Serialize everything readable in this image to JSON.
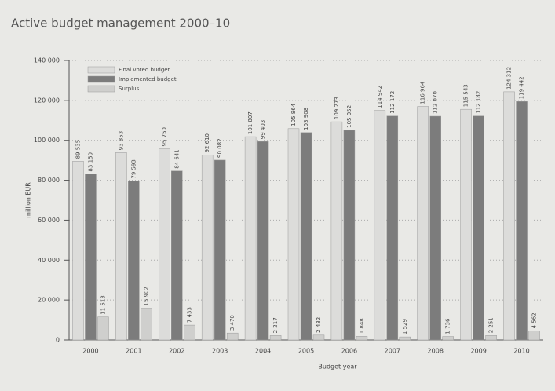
{
  "chart_data": {
    "type": "bar",
    "title": "Active budget management 2000–10",
    "x_label": "Budget year",
    "y_label": "million EUR",
    "categories": [
      "2000",
      "2001",
      "2002",
      "2003",
      "2004",
      "2005",
      "2006",
      "2007",
      "2008",
      "2009",
      "2010"
    ],
    "series": [
      {
        "name": "Final voted budget",
        "color": "#dcdcda",
        "values": [
          89535,
          93853,
          95750,
          92610,
          101807,
          105864,
          109273,
          114942,
          116964,
          115543,
          124312
        ],
        "value_labels": [
          "89 535",
          "93 853",
          "95 750",
          "92 610",
          "101 807",
          "105 864",
          "109 273",
          "114 942",
          "116 964",
          "115 543",
          "124 312"
        ]
      },
      {
        "name": "Implemented budget",
        "color": "#7c7c7c",
        "values": [
          83150,
          79593,
          84641,
          90082,
          99403,
          103908,
          105052,
          112172,
          112070,
          112182,
          119442
        ],
        "value_labels": [
          "83 150",
          "79 593",
          "84 641",
          "90 082",
          "99 403",
          "103 908",
          "105 052",
          "112 172",
          "112 070",
          "112 182",
          "119 442"
        ]
      },
      {
        "name": "Surplus",
        "color": "#cfcfcd",
        "values": [
          11513,
          15902,
          7433,
          3470,
          2217,
          2432,
          1848,
          1529,
          1736,
          2251,
          4562
        ],
        "value_labels": [
          "11 513",
          "15 902",
          "7 433",
          "3 470",
          "2 217",
          "2 432",
          "1 848",
          "1 529",
          "1 736",
          "2 251",
          "4 562"
        ]
      }
    ],
    "ylim": [
      0,
      140000
    ],
    "yticks": [
      0,
      {
        "value": 20000,
        "label": "20 000"
      },
      {
        "value": 40000,
        "label": "40 000"
      },
      {
        "value": 60000,
        "label": "60 000"
      },
      {
        "value": 80000,
        "label": "80 000"
      },
      {
        "value": 100000,
        "label": "100 000"
      },
      {
        "value": 120000,
        "label": "120 000"
      },
      {
        "value": 140000,
        "label": "140 000"
      }
    ],
    "grid": true,
    "legend": "top-left"
  }
}
